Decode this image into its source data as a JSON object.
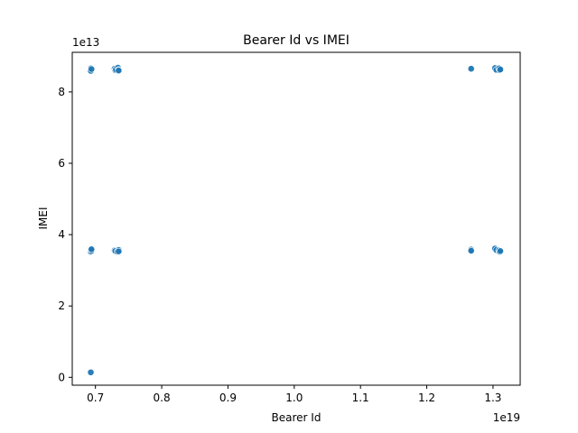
{
  "chart_data": {
    "type": "scatter",
    "title": "Bearer Id vs IMEI",
    "xlabel": "Bearer Id",
    "ylabel": "IMEI",
    "x_offset_text": "1e19",
    "y_offset_text": "1e13",
    "xlim": [
      0.665,
      1.341
    ],
    "ylim": [
      -0.22,
      9.11
    ],
    "x_ticks": [
      0.7,
      0.8,
      0.9,
      1.0,
      1.1,
      1.2,
      1.3
    ],
    "x_tick_labels": [
      "0.7",
      "0.8",
      "0.9",
      "1.0",
      "1.1",
      "1.2",
      "1.3"
    ],
    "y_ticks": [
      0,
      2,
      4,
      6,
      8
    ],
    "y_tick_labels": [
      "0",
      "2",
      "4",
      "6",
      "8"
    ],
    "grid": false,
    "legend": "none",
    "color": "#1f77b4",
    "series": [
      {
        "x": [
          0.693,
          0.693,
          0.693,
          0.694,
          0.729,
          0.73,
          0.731,
          0.734,
          0.735,
          0.735,
          1.267,
          1.303,
          1.305,
          1.309,
          1.31,
          1.311,
          0.693,
          0.693,
          0.694,
          0.694,
          0.729,
          0.73,
          0.733,
          0.735,
          0.735,
          1.267,
          1.267,
          1.303,
          1.305,
          1.309,
          1.31,
          1.311,
          0.693
        ],
        "y": [
          8.66,
          8.62,
          8.59,
          8.64,
          8.65,
          8.61,
          8.63,
          8.68,
          8.62,
          8.6,
          8.65,
          8.67,
          8.62,
          8.66,
          8.61,
          8.63,
          3.57,
          3.52,
          3.55,
          3.59,
          3.56,
          3.54,
          3.52,
          3.57,
          3.53,
          3.58,
          3.55,
          3.61,
          3.57,
          3.56,
          3.52,
          3.54,
          0.14
        ]
      }
    ]
  }
}
